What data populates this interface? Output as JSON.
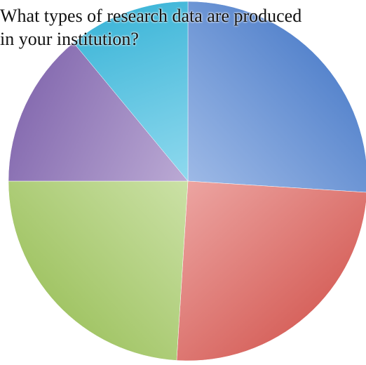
{
  "chart_data": {
    "type": "pie",
    "title_lines": [
      "What types of research data are produced",
      "in your institution?"
    ],
    "start_angle_deg": 0,
    "direction": "clockwise",
    "legend": "none",
    "slices": [
      {
        "value": 26,
        "color": "#5b8bd6"
      },
      {
        "value": 25,
        "color": "#e06862"
      },
      {
        "value": 24,
        "color": "#a9cd6a"
      },
      {
        "value": 14,
        "color": "#8d72b8"
      },
      {
        "value": 11,
        "color": "#44bfe2"
      }
    ]
  }
}
